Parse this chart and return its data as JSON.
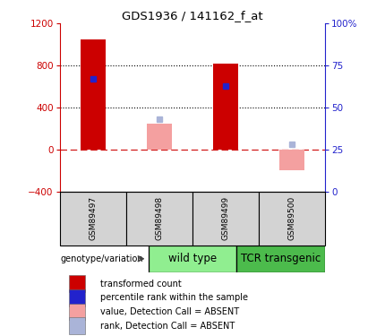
{
  "title": "GDS1936 / 141162_f_at",
  "samples": [
    "GSM89497",
    "GSM89498",
    "GSM89499",
    "GSM89500"
  ],
  "transformed_counts": [
    1050,
    null,
    820,
    null
  ],
  "percentile_ranks": [
    67,
    null,
    63,
    null
  ],
  "absent_values": [
    null,
    250,
    null,
    -200
  ],
  "absent_ranks": [
    null,
    43,
    null,
    28
  ],
  "ylim_left": [
    -400,
    1200
  ],
  "ylim_right": [
    0,
    100
  ],
  "yticks_left": [
    -400,
    0,
    400,
    800,
    1200
  ],
  "yticks_right": [
    0,
    25,
    50,
    75,
    100
  ],
  "hline_y": [
    800,
    400
  ],
  "bar_color_red": "#cc0000",
  "bar_color_blue": "#2222cc",
  "bar_color_pink": "#f4a0a0",
  "bar_color_lightblue": "#aab4d8",
  "wildtype_color": "#90ee90",
  "tcr_color": "#4cbb4c",
  "sample_bg": "#d3d3d3",
  "legend_items": [
    {
      "label": "transformed count",
      "color": "#cc0000"
    },
    {
      "label": "percentile rank within the sample",
      "color": "#2222cc"
    },
    {
      "label": "value, Detection Call = ABSENT",
      "color": "#f4a0a0"
    },
    {
      "label": "rank, Detection Call = ABSENT",
      "color": "#aab4d8"
    }
  ],
  "group_labels": [
    "wild type",
    "TCR transgenic"
  ],
  "genotype_label": "genotype/variation"
}
